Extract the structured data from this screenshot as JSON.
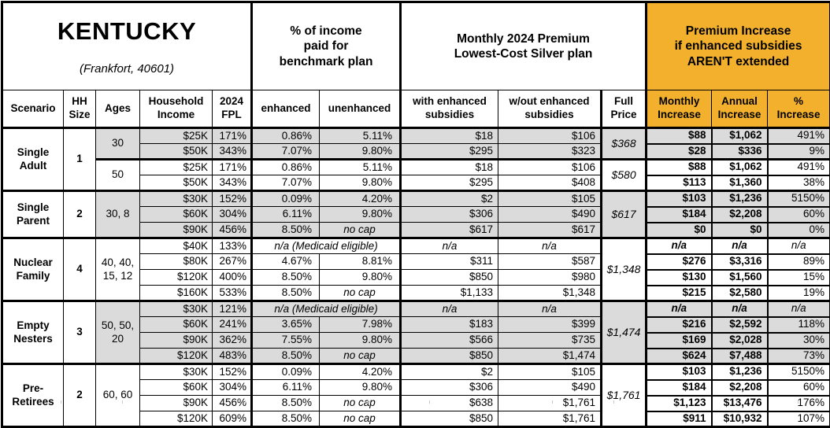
{
  "title": {
    "state": "KENTUCKY",
    "subtitle": "(Frankfort, 40601)"
  },
  "header_groups": {
    "income_pct": "% of income\npaid for\nbenchmark plan",
    "premium": "Monthly 2024 Premium\nLowest-Cost Silver plan",
    "increase": "Premium Increase\nif enhanced subsidies\nAREN'T extended"
  },
  "columns": [
    "Scenario",
    "HH\nSize",
    "Ages",
    "Household\nIncome",
    "2024\nFPL",
    "enhanced",
    "unenhanced",
    "with enhanced\nsubsidies",
    "w/out enhanced\nsubsidies",
    "Full\nPrice",
    "Monthly\nIncrease",
    "Annual\nIncrease",
    "%\nIncrease"
  ],
  "colors": {
    "accent_orange": "#F2B02C",
    "row_shade_gray": "#DBDBDB"
  },
  "groups": [
    {
      "scenario": "Single\nAdult",
      "hh_size": "1",
      "subgroups": [
        {
          "ages": "30",
          "shaded": true,
          "full_price": "$368",
          "rows": [
            {
              "income": "$25K",
              "fpl": "171%",
              "enhanced": "0.86%",
              "unenhanced": "5.11%",
              "with_sub": "$18",
              "wout_sub": "$106",
              "monthly": "$88",
              "annual": "$1,062",
              "pct": "491%"
            },
            {
              "income": "$50K",
              "fpl": "343%",
              "enhanced": "7.07%",
              "unenhanced": "9.80%",
              "with_sub": "$295",
              "wout_sub": "$323",
              "monthly": "$28",
              "annual": "$336",
              "pct": "9%"
            }
          ]
        },
        {
          "ages": "50",
          "shaded": false,
          "full_price": "$580",
          "rows": [
            {
              "income": "$25K",
              "fpl": "171%",
              "enhanced": "0.86%",
              "unenhanced": "5.11%",
              "with_sub": "$18",
              "wout_sub": "$106",
              "monthly": "$88",
              "annual": "$1,062",
              "pct": "491%"
            },
            {
              "income": "$50K",
              "fpl": "343%",
              "enhanced": "7.07%",
              "unenhanced": "9.80%",
              "with_sub": "$295",
              "wout_sub": "$408",
              "monthly": "$113",
              "annual": "$1,360",
              "pct": "38%"
            }
          ]
        }
      ]
    },
    {
      "scenario": "Single\nParent",
      "hh_size": "2",
      "subgroups": [
        {
          "ages": "30, 8",
          "shaded": true,
          "full_price": "$617",
          "rows": [
            {
              "income": "$30K",
              "fpl": "152%",
              "enhanced": "0.09%",
              "unenhanced": "4.20%",
              "with_sub": "$2",
              "wout_sub": "$105",
              "monthly": "$103",
              "annual": "$1,236",
              "pct": "5150%"
            },
            {
              "income": "$60K",
              "fpl": "304%",
              "enhanced": "6.11%",
              "unenhanced": "9.80%",
              "with_sub": "$306",
              "wout_sub": "$490",
              "monthly": "$184",
              "annual": "$2,208",
              "pct": "60%"
            },
            {
              "income": "$90K",
              "fpl": "456%",
              "enhanced": "8.50%",
              "unenhanced": "no cap",
              "with_sub": "$617",
              "wout_sub": "$617",
              "monthly": "$0",
              "annual": "$0",
              "pct": "0%"
            }
          ]
        }
      ]
    },
    {
      "scenario": "Nuclear\nFamily",
      "hh_size": "4",
      "subgroups": [
        {
          "ages": "40, 40,\n15, 12",
          "shaded": false,
          "full_price": "$1,348",
          "rows": [
            {
              "income": "$40K",
              "fpl": "133%",
              "medicaid": "n/a (Medicaid eligible)",
              "with_sub": "n/a",
              "wout_sub": "n/a",
              "monthly": "n/a",
              "annual": "n/a",
              "pct": "n/a"
            },
            {
              "income": "$80K",
              "fpl": "267%",
              "enhanced": "4.67%",
              "unenhanced": "8.81%",
              "with_sub": "$311",
              "wout_sub": "$587",
              "monthly": "$276",
              "annual": "$3,316",
              "pct": "89%"
            },
            {
              "income": "$120K",
              "fpl": "400%",
              "enhanced": "8.50%",
              "unenhanced": "9.80%",
              "with_sub": "$850",
              "wout_sub": "$980",
              "monthly": "$130",
              "annual": "$1,560",
              "pct": "15%"
            },
            {
              "income": "$160K",
              "fpl": "533%",
              "enhanced": "8.50%",
              "unenhanced": "no cap",
              "with_sub": "$1,133",
              "wout_sub": "$1,348",
              "monthly": "$215",
              "annual": "$2,580",
              "pct": "19%"
            }
          ]
        }
      ]
    },
    {
      "scenario": "Empty\nNesters",
      "hh_size": "3",
      "subgroups": [
        {
          "ages": "50, 50,\n20",
          "shaded": true,
          "full_price": "$1,474",
          "rows": [
            {
              "income": "$30K",
              "fpl": "121%",
              "medicaid": "n/a (Medicaid eligible)",
              "with_sub": "n/a",
              "wout_sub": "n/a",
              "monthly": "n/a",
              "annual": "n/a",
              "pct": "n/a"
            },
            {
              "income": "$60K",
              "fpl": "241%",
              "enhanced": "3.65%",
              "unenhanced": "7.98%",
              "with_sub": "$183",
              "wout_sub": "$399",
              "monthly": "$216",
              "annual": "$2,592",
              "pct": "118%"
            },
            {
              "income": "$90K",
              "fpl": "362%",
              "enhanced": "7.55%",
              "unenhanced": "9.80%",
              "with_sub": "$566",
              "wout_sub": "$735",
              "monthly": "$169",
              "annual": "$2,028",
              "pct": "30%"
            },
            {
              "income": "$120K",
              "fpl": "483%",
              "enhanced": "8.50%",
              "unenhanced": "no cap",
              "with_sub": "$850",
              "wout_sub": "$1,474",
              "monthly": "$624",
              "annual": "$7,488",
              "pct": "73%"
            }
          ]
        }
      ]
    },
    {
      "scenario": "Pre-\nRetirees",
      "hh_size": "2",
      "subgroups": [
        {
          "ages": "60, 60",
          "shaded": false,
          "full_price": "$1,761",
          "rows": [
            {
              "income": "$30K",
              "fpl": "152%",
              "enhanced": "0.09%",
              "unenhanced": "4.20%",
              "with_sub": "$2",
              "wout_sub": "$105",
              "monthly": "$103",
              "annual": "$1,236",
              "pct": "5150%"
            },
            {
              "income": "$60K",
              "fpl": "304%",
              "enhanced": "6.11%",
              "unenhanced": "9.80%",
              "with_sub": "$306",
              "wout_sub": "$490",
              "monthly": "$184",
              "annual": "$2,208",
              "pct": "60%"
            },
            {
              "income": "$90K",
              "fpl": "456%",
              "enhanced": "8.50%",
              "unenhanced": "no cap",
              "with_sub": "$638",
              "wout_sub": "$1,761",
              "monthly": "$1,123",
              "annual": "$13,476",
              "pct": "176%"
            },
            {
              "income": "$120K",
              "fpl": "609%",
              "enhanced": "8.50%",
              "unenhanced": "no cap",
              "with_sub": "$850",
              "wout_sub": "$1,761",
              "monthly": "$911",
              "annual": "$10,932",
              "pct": "107%"
            }
          ]
        }
      ]
    }
  ]
}
